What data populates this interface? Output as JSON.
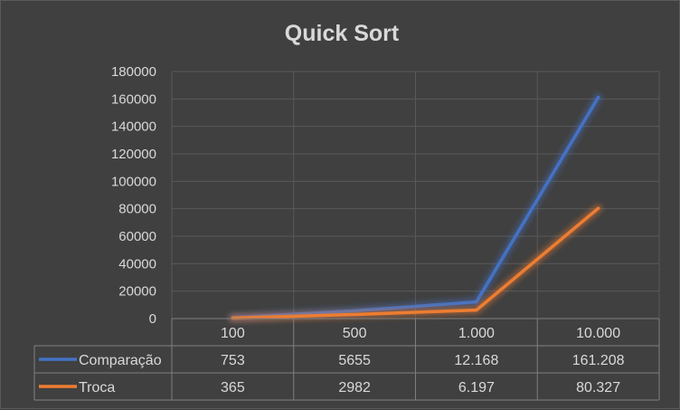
{
  "chart_data": {
    "type": "line",
    "title": "Quick Sort",
    "categories": [
      "100",
      "500",
      "1.000",
      "10.000"
    ],
    "series": [
      {
        "name": "Comparação",
        "values": [
          753,
          5655,
          12168,
          161208
        ],
        "labels": [
          "753",
          "5655",
          "12.168",
          "161.208"
        ],
        "color": "#4472c4"
      },
      {
        "name": "Troca",
        "values": [
          365,
          2982,
          6197,
          80327
        ],
        "labels": [
          "365",
          "2982",
          "6.197",
          "80.327"
        ],
        "color": "#ed7d31"
      }
    ],
    "ylim": [
      0,
      180000
    ],
    "yticks": [
      0,
      20000,
      40000,
      60000,
      80000,
      100000,
      120000,
      140000,
      160000,
      180000
    ],
    "grid": true,
    "legend": "data-table"
  }
}
